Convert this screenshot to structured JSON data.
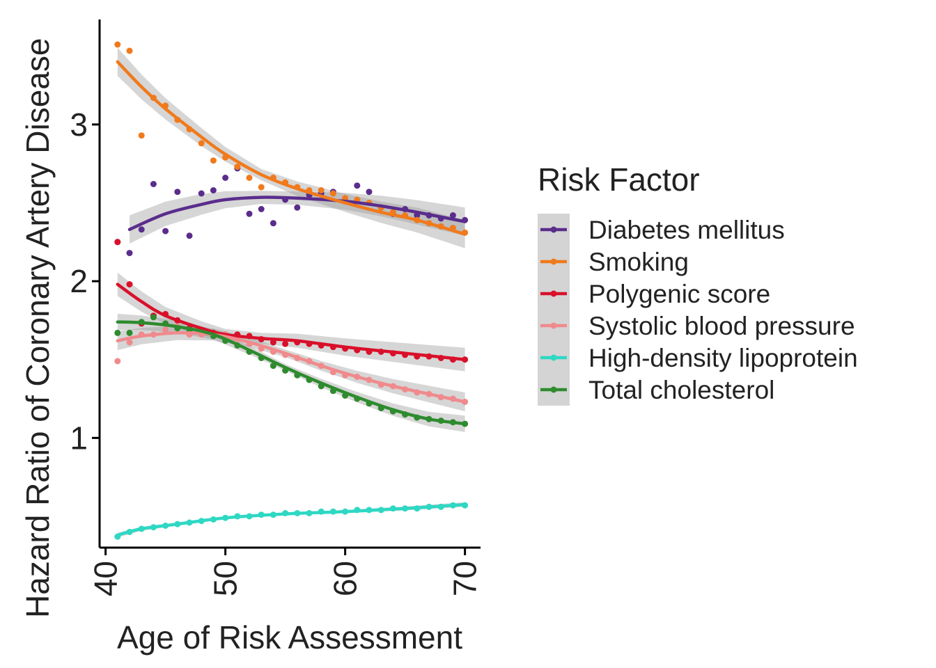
{
  "chart_data": {
    "type": "scatter",
    "xlabel": "Age of Risk Assessment",
    "ylabel": "Hazard Ratio of Coronary Artery Disease",
    "xlim": [
      39.5,
      71.3
    ],
    "ylim": [
      0.3,
      3.67
    ],
    "xticks": [
      40,
      50,
      60,
      70
    ],
    "yticks": [
      1,
      2,
      3
    ],
    "grid": false,
    "legend": {
      "title": "Risk Factor",
      "position": "right"
    },
    "series": [
      {
        "name": "Diabetes mellitus",
        "color": "#5a2d8c",
        "points": [
          [
            41,
            2.25
          ],
          [
            42,
            2.18
          ],
          [
            43,
            2.33
          ],
          [
            44,
            2.62
          ],
          [
            45,
            2.32
          ],
          [
            46,
            2.57
          ],
          [
            47,
            2.29
          ],
          [
            48,
            2.56
          ],
          [
            49,
            2.58
          ],
          [
            50,
            2.66
          ],
          [
            51,
            2.72
          ],
          [
            52,
            2.43
          ],
          [
            53,
            2.46
          ],
          [
            54,
            2.37
          ],
          [
            55,
            2.52
          ],
          [
            56,
            2.47
          ],
          [
            57,
            2.55
          ],
          [
            58,
            2.56
          ],
          [
            59,
            2.57
          ],
          [
            60,
            2.51
          ],
          [
            61,
            2.61
          ],
          [
            62,
            2.57
          ],
          [
            63,
            2.47
          ],
          [
            64,
            2.43
          ],
          [
            65,
            2.46
          ],
          [
            66,
            2.42
          ],
          [
            67,
            2.42
          ],
          [
            68,
            2.4
          ],
          [
            69,
            2.42
          ],
          [
            70,
            2.39
          ]
        ],
        "fit": [
          [
            42,
            2.33
          ],
          [
            45,
            2.43
          ],
          [
            48,
            2.49
          ],
          [
            50,
            2.52
          ],
          [
            53,
            2.535
          ],
          [
            56,
            2.53
          ],
          [
            60,
            2.51
          ],
          [
            63,
            2.48
          ],
          [
            66,
            2.44
          ],
          [
            70,
            2.38
          ]
        ],
        "band": 0.06
      },
      {
        "name": "Smoking",
        "color": "#f07a1c",
        "points": [
          [
            41,
            3.51
          ],
          [
            42,
            3.47
          ],
          [
            43,
            2.93
          ],
          [
            44,
            3.17
          ],
          [
            45,
            3.12
          ],
          [
            46,
            3.03
          ],
          [
            47,
            2.97
          ],
          [
            48,
            2.88
          ],
          [
            49,
            2.77
          ],
          [
            50,
            2.79
          ],
          [
            51,
            2.73
          ],
          [
            52,
            2.66
          ],
          [
            53,
            2.6
          ],
          [
            54,
            2.66
          ],
          [
            55,
            2.63
          ],
          [
            56,
            2.6
          ],
          [
            57,
            2.58
          ],
          [
            58,
            2.58
          ],
          [
            59,
            2.56
          ],
          [
            60,
            2.53
          ],
          [
            61,
            2.52
          ],
          [
            62,
            2.5
          ],
          [
            63,
            2.47
          ],
          [
            64,
            2.44
          ],
          [
            65,
            2.42
          ],
          [
            66,
            2.39
          ],
          [
            67,
            2.37
          ],
          [
            68,
            2.35
          ],
          [
            69,
            2.34
          ],
          [
            70,
            2.31
          ]
        ],
        "fit": [
          [
            41,
            3.4
          ],
          [
            43,
            3.24
          ],
          [
            45,
            3.1
          ],
          [
            48,
            2.92
          ],
          [
            50,
            2.81
          ],
          [
            53,
            2.68
          ],
          [
            56,
            2.59
          ],
          [
            60,
            2.5
          ],
          [
            63,
            2.44
          ],
          [
            66,
            2.39
          ],
          [
            70,
            2.3
          ]
        ],
        "band": 0.06
      },
      {
        "name": "Polygenic score",
        "color": "#d9102a",
        "points": [
          [
            41,
            2.25
          ],
          [
            42,
            1.98
          ],
          [
            43,
            1.73
          ],
          [
            44,
            1.78
          ],
          [
            45,
            1.79
          ],
          [
            46,
            1.75
          ],
          [
            47,
            1.7
          ],
          [
            48,
            1.68
          ],
          [
            49,
            1.67
          ],
          [
            50,
            1.66
          ],
          [
            51,
            1.66
          ],
          [
            52,
            1.65
          ],
          [
            53,
            1.63
          ],
          [
            54,
            1.61
          ],
          [
            55,
            1.6
          ],
          [
            56,
            1.61
          ],
          [
            57,
            1.6
          ],
          [
            58,
            1.59
          ],
          [
            59,
            1.58
          ],
          [
            60,
            1.57
          ],
          [
            61,
            1.56
          ],
          [
            62,
            1.55
          ],
          [
            63,
            1.55
          ],
          [
            64,
            1.54
          ],
          [
            65,
            1.53
          ],
          [
            66,
            1.52
          ],
          [
            67,
            1.52
          ],
          [
            68,
            1.51
          ],
          [
            69,
            1.5
          ],
          [
            70,
            1.5
          ]
        ],
        "fit": [
          [
            41,
            1.98
          ],
          [
            43,
            1.87
          ],
          [
            45,
            1.78
          ],
          [
            48,
            1.7
          ],
          [
            50,
            1.66
          ],
          [
            53,
            1.635
          ],
          [
            56,
            1.62
          ],
          [
            60,
            1.58
          ],
          [
            65,
            1.54
          ],
          [
            70,
            1.5
          ]
        ],
        "band": 0.05
      },
      {
        "name": "Systolic blood pressure",
        "color": "#f08a8c",
        "points": [
          [
            41,
            1.49
          ],
          [
            42,
            1.61
          ],
          [
            43,
            1.66
          ],
          [
            44,
            1.66
          ],
          [
            45,
            1.69
          ],
          [
            46,
            1.71
          ],
          [
            47,
            1.66
          ],
          [
            48,
            1.66
          ],
          [
            49,
            1.66
          ],
          [
            50,
            1.66
          ],
          [
            51,
            1.63
          ],
          [
            52,
            1.6
          ],
          [
            53,
            1.57
          ],
          [
            54,
            1.55
          ],
          [
            55,
            1.53
          ],
          [
            56,
            1.51
          ],
          [
            57,
            1.49
          ],
          [
            58,
            1.46
          ],
          [
            59,
            1.42
          ],
          [
            60,
            1.4
          ],
          [
            61,
            1.39
          ],
          [
            62,
            1.37
          ],
          [
            63,
            1.34
          ],
          [
            64,
            1.33
          ],
          [
            65,
            1.31
          ],
          [
            66,
            1.29
          ],
          [
            67,
            1.28
          ],
          [
            68,
            1.26
          ],
          [
            69,
            1.25
          ],
          [
            70,
            1.23
          ]
        ],
        "fit": [
          [
            41,
            1.62
          ],
          [
            43,
            1.65
          ],
          [
            46,
            1.67
          ],
          [
            49,
            1.66
          ],
          [
            52,
            1.61
          ],
          [
            55,
            1.54
          ],
          [
            58,
            1.46
          ],
          [
            61,
            1.39
          ],
          [
            64,
            1.33
          ],
          [
            67,
            1.28
          ],
          [
            70,
            1.23
          ]
        ],
        "band": 0.04
      },
      {
        "name": "High-density lipoprotein",
        "color": "#2ed8c3",
        "points": [
          [
            41,
            0.37
          ],
          [
            42,
            0.4
          ],
          [
            43,
            0.42
          ],
          [
            44,
            0.43
          ],
          [
            45,
            0.44
          ],
          [
            46,
            0.45
          ],
          [
            47,
            0.46
          ],
          [
            48,
            0.47
          ],
          [
            49,
            0.48
          ],
          [
            50,
            0.49
          ],
          [
            51,
            0.5
          ],
          [
            52,
            0.5
          ],
          [
            53,
            0.51
          ],
          [
            54,
            0.51
          ],
          [
            55,
            0.52
          ],
          [
            56,
            0.52
          ],
          [
            57,
            0.52
          ],
          [
            58,
            0.53
          ],
          [
            59,
            0.53
          ],
          [
            60,
            0.53
          ],
          [
            61,
            0.54
          ],
          [
            62,
            0.54
          ],
          [
            63,
            0.54
          ],
          [
            64,
            0.55
          ],
          [
            65,
            0.55
          ],
          [
            66,
            0.55
          ],
          [
            67,
            0.56
          ],
          [
            68,
            0.56
          ],
          [
            69,
            0.57
          ],
          [
            70,
            0.57
          ]
        ],
        "fit": [
          [
            41,
            0.38
          ],
          [
            43,
            0.42
          ],
          [
            46,
            0.45
          ],
          [
            50,
            0.49
          ],
          [
            55,
            0.515
          ],
          [
            60,
            0.53
          ],
          [
            65,
            0.55
          ],
          [
            70,
            0.575
          ]
        ],
        "band": 0.01
      },
      {
        "name": "Total cholesterol",
        "color": "#2e8b2e",
        "points": [
          [
            41,
            1.67
          ],
          [
            42,
            1.67
          ],
          [
            43,
            1.74
          ],
          [
            44,
            1.77
          ],
          [
            45,
            1.73
          ],
          [
            46,
            1.7
          ],
          [
            47,
            1.69
          ],
          [
            48,
            1.68
          ],
          [
            49,
            1.65
          ],
          [
            50,
            1.62
          ],
          [
            51,
            1.59
          ],
          [
            52,
            1.55
          ],
          [
            53,
            1.51
          ],
          [
            54,
            1.46
          ],
          [
            55,
            1.43
          ],
          [
            56,
            1.4
          ],
          [
            57,
            1.37
          ],
          [
            58,
            1.33
          ],
          [
            59,
            1.3
          ],
          [
            60,
            1.27
          ],
          [
            61,
            1.25
          ],
          [
            62,
            1.22
          ],
          [
            63,
            1.19
          ],
          [
            64,
            1.17
          ],
          [
            65,
            1.15
          ],
          [
            66,
            1.13
          ],
          [
            67,
            1.12
          ],
          [
            68,
            1.11
          ],
          [
            69,
            1.1
          ],
          [
            70,
            1.09
          ]
        ],
        "fit": [
          [
            41,
            1.74
          ],
          [
            43,
            1.735
          ],
          [
            46,
            1.71
          ],
          [
            49,
            1.66
          ],
          [
            52,
            1.56
          ],
          [
            55,
            1.45
          ],
          [
            58,
            1.35
          ],
          [
            61,
            1.26
          ],
          [
            64,
            1.18
          ],
          [
            67,
            1.12
          ],
          [
            70,
            1.09
          ]
        ],
        "band": 0.035
      }
    ]
  }
}
